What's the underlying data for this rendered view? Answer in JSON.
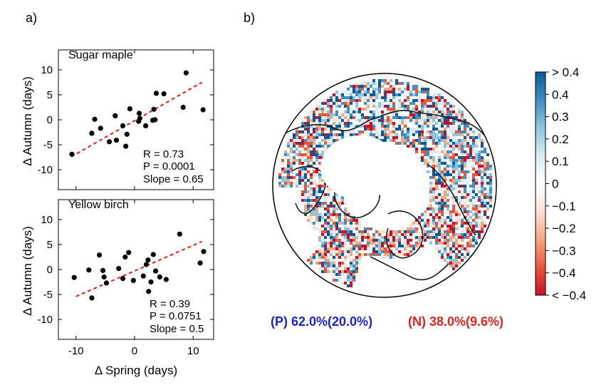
{
  "panel_labels": [
    "a)",
    "b)"
  ],
  "chart_data": [
    {
      "type": "scatter",
      "title": "Sugar maple",
      "xlabel": "",
      "ylabel": "Δ Autumn (days)",
      "xlim": [
        -13,
        13.5
      ],
      "ylim": [
        -14,
        14
      ],
      "xticks": [
        -10,
        0,
        10
      ],
      "yticks": [
        10,
        5,
        0,
        -5,
        -10
      ],
      "stats": [
        "R = 0.73",
        "P = 0.0001",
        "Slope = 0.65"
      ],
      "fit": {
        "x": [
          -10.8,
          11.5
        ],
        "y": [
          -7.4,
          7.5
        ]
      },
      "points": [
        [
          -10.7,
          -6.9
        ],
        [
          -7.3,
          -2.7
        ],
        [
          -6.8,
          0.1
        ],
        [
          -5.8,
          -1.7
        ],
        [
          -4.3,
          -4.4
        ],
        [
          -3.3,
          0.8
        ],
        [
          -3.1,
          -4.1
        ],
        [
          -2.0,
          -1.2
        ],
        [
          -1.5,
          -5.3
        ],
        [
          -1.3,
          -2.9
        ],
        [
          -0.8,
          2.2
        ],
        [
          0.7,
          -0.3
        ],
        [
          0.8,
          1.3
        ],
        [
          0.9,
          0.3
        ],
        [
          1.9,
          -1.2
        ],
        [
          3.1,
          -0.1
        ],
        [
          3.3,
          2.1
        ],
        [
          3.5,
          0.0
        ],
        [
          3.7,
          5.3
        ],
        [
          5.0,
          5.2
        ],
        [
          8.3,
          2.5
        ],
        [
          8.8,
          9.4
        ],
        [
          11.7,
          2.0
        ]
      ]
    },
    {
      "type": "scatter",
      "title": "Yellow birch",
      "xlabel": "Δ Spring (days)",
      "ylabel": "Δ Autumn (days)",
      "xlim": [
        -13,
        13.5
      ],
      "ylim": [
        -14,
        14
      ],
      "xticks": [
        -10,
        0,
        10
      ],
      "yticks": [
        10,
        5,
        0,
        -5,
        -10
      ],
      "stats": [
        "R = 0.39",
        "P = 0.0751",
        "Slope = 0.5"
      ],
      "fit": {
        "x": [
          -10.0,
          11.5
        ],
        "y": [
          -5.4,
          5.6
        ]
      },
      "points": [
        [
          -10.3,
          -1.6
        ],
        [
          -7.8,
          -0.1
        ],
        [
          -7.3,
          -5.7
        ],
        [
          -6.0,
          2.9
        ],
        [
          -5.4,
          -0.2
        ],
        [
          -5.2,
          -1.5
        ],
        [
          -4.8,
          -2.7
        ],
        [
          -2.7,
          0.2
        ],
        [
          -2.0,
          -1.8
        ],
        [
          -1.6,
          2.5
        ],
        [
          -1.0,
          3.4
        ],
        [
          -0.2,
          -2.2
        ],
        [
          1.5,
          -1.3
        ],
        [
          2.0,
          1.0
        ],
        [
          2.3,
          1.9
        ],
        [
          2.4,
          -4.4
        ],
        [
          2.8,
          -2.5
        ],
        [
          3.2,
          3.0
        ],
        [
          3.6,
          -0.3
        ],
        [
          4.3,
          -1.5
        ],
        [
          5.4,
          -2.0
        ],
        [
          7.7,
          7.1
        ],
        [
          11.2,
          1.3
        ],
        [
          11.8,
          3.6
        ]
      ]
    },
    {
      "type": "heatmap",
      "colorbar": {
        "ticks": [
          "> 0.4",
          "0.4",
          "0.3",
          "0.2",
          "0.1",
          "0",
          "−0.1",
          "−0.2",
          "−0.3",
          "−0.4",
          "< −0.4"
        ],
        "range": [
          -0.4,
          0.4
        ],
        "colors": [
          "#c8102e",
          "#e8573b",
          "#f4a582",
          "#fbe2d4",
          "#ffffff",
          "#d8ecf5",
          "#8fc6df",
          "#3f8fc0",
          "#0b5a96"
        ]
      },
      "summary": {
        "positive": "(P) 62.0%(20.0%)",
        "negative": "(N) 38.0%(9.6%)",
        "positive_color": "#1f1fd6",
        "negative_color": "#e32222"
      }
    }
  ]
}
